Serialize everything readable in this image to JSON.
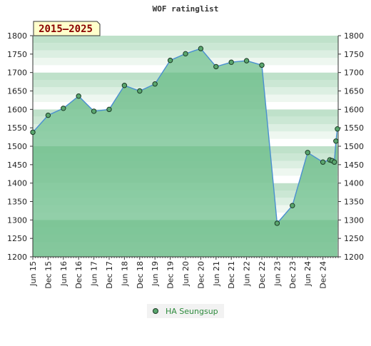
{
  "chart_data": {
    "type": "area",
    "title": "WOF ratinglist",
    "date_range_badge": "2015–2025",
    "ylim": [
      1200,
      1800
    ],
    "yticks": [
      1200,
      1250,
      1300,
      1350,
      1400,
      1450,
      1500,
      1550,
      1600,
      1650,
      1700,
      1750,
      1800
    ],
    "x_ticks": [
      "Jun 15",
      "Dec 15",
      "Jun 16",
      "Dec 16",
      "Jun 17",
      "Dec 17",
      "Jun 18",
      "Dec 18",
      "Jun 19",
      "Dec 19",
      "Jun 20",
      "Dec 20",
      "Jun 21",
      "Dec 21",
      "Jun 22",
      "Dec 22",
      "Jun 23",
      "Dec 23",
      "Jun 24",
      "Dec 24"
    ],
    "grid": true,
    "legend_position": "bottom-center",
    "series": [
      {
        "name": "HA Seungsup",
        "color": "#4a8fd0",
        "fill": "#7fc79a",
        "x": [
          0,
          1,
          2,
          3,
          4,
          5,
          6,
          7,
          8,
          9,
          10,
          11,
          12,
          13,
          14,
          15,
          16,
          17,
          18,
          19,
          19.45,
          19.6,
          19.75,
          19.85,
          19.95
        ],
        "values": [
          1538,
          1584,
          1603,
          1636,
          1595,
          1600,
          1665,
          1650,
          1669,
          1733,
          1751,
          1765,
          1716,
          1728,
          1732,
          1720,
          1291,
          1339,
          1483,
          1457,
          1463,
          1461,
          1457,
          1514,
          1547
        ]
      }
    ]
  }
}
